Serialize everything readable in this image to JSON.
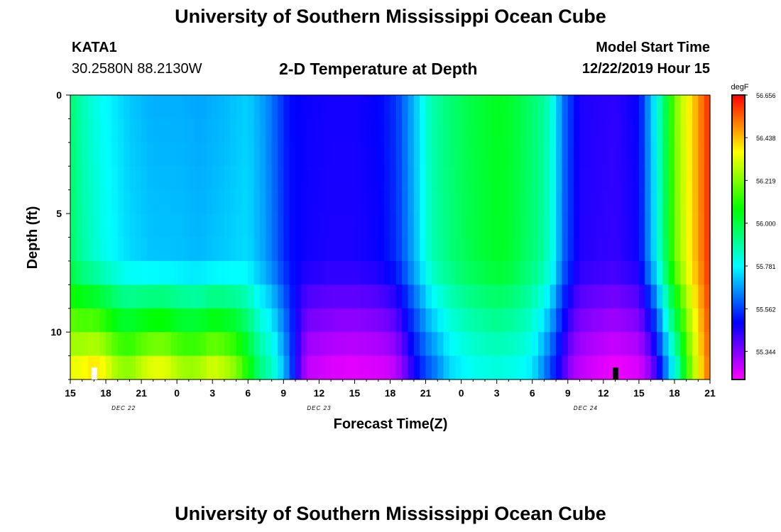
{
  "header": {
    "title_top": "University of Southern Mississippi Ocean Cube",
    "title_bottom": "University of Southern Mississippi Ocean Cube",
    "station_id": "KATA1",
    "coordinates": "30.2580N 88.2130W",
    "plot_title": "2-D Temperature at Depth",
    "model_start_label": "Model Start Time",
    "model_start_value": "12/22/2019 Hour 15"
  },
  "chart_data": {
    "type": "heatmap",
    "title": "2-D Temperature at Depth",
    "xlabel": "Forecast Time(Z)",
    "ylabel": "Depth (ft)",
    "x_range_hours": [
      0,
      54
    ],
    "x_ticks": [
      {
        "h": 0,
        "label": "15"
      },
      {
        "h": 3,
        "label": "18"
      },
      {
        "h": 6,
        "label": "21"
      },
      {
        "h": 9,
        "label": "0"
      },
      {
        "h": 12,
        "label": "3"
      },
      {
        "h": 15,
        "label": "6"
      },
      {
        "h": 18,
        "label": "9"
      },
      {
        "h": 21,
        "label": "12"
      },
      {
        "h": 24,
        "label": "15"
      },
      {
        "h": 27,
        "label": "18"
      },
      {
        "h": 30,
        "label": "21"
      },
      {
        "h": 33,
        "label": "0"
      },
      {
        "h": 36,
        "label": "3"
      },
      {
        "h": 39,
        "label": "6"
      },
      {
        "h": 42,
        "label": "9"
      },
      {
        "h": 45,
        "label": "12"
      },
      {
        "h": 48,
        "label": "15"
      },
      {
        "h": 51,
        "label": "18"
      },
      {
        "h": 54,
        "label": "21"
      }
    ],
    "date_labels": [
      {
        "h": 4.5,
        "label": "DEC 22"
      },
      {
        "h": 21,
        "label": "DEC 23"
      },
      {
        "h": 43.5,
        "label": "DEC 24"
      }
    ],
    "y_range_ft": [
      0,
      12
    ],
    "y_ticks": [
      {
        "ft": 0,
        "label": "0"
      },
      {
        "ft": 5,
        "label": "5"
      },
      {
        "ft": 10,
        "label": "10"
      }
    ],
    "layers_depth_ft": [
      0.5,
      1.5,
      2.5,
      3.5,
      4.5,
      5.5,
      6.5,
      7.5,
      8.5,
      9.5,
      10.5,
      11.5
    ],
    "colorbar": {
      "unit": "degF",
      "min": 55.2,
      "max": 56.656,
      "tick_labels": [
        "56.656",
        "56.438",
        "56.219",
        "56.000",
        "55.781",
        "55.562",
        "55.344"
      ],
      "tick_values": [
        56.656,
        56.438,
        56.219,
        56.0,
        55.781,
        55.562,
        55.344
      ]
    },
    "markers": [
      {
        "h": 2.0,
        "color": "#ffffff",
        "label": "tide-marker-white"
      },
      {
        "h": 46.0,
        "color": "#000000",
        "label": "tide-marker-black"
      }
    ],
    "surface_profile": {
      "h": [
        0,
        1,
        2,
        3,
        5,
        7,
        9,
        11,
        13,
        15,
        16.5,
        17.5,
        18.5,
        20,
        22,
        24,
        26,
        27.5,
        29,
        30.5,
        32,
        33.5,
        35,
        36,
        37,
        38,
        39,
        40,
        40.8,
        41.6,
        43,
        46,
        48,
        48.6,
        49.5,
        50.3,
        51,
        52,
        53,
        54
      ],
      "temp": [
        55.95,
        55.87,
        55.82,
        55.78,
        55.72,
        55.69,
        55.69,
        55.68,
        55.7,
        55.73,
        55.66,
        55.58,
        55.5,
        55.48,
        55.47,
        55.47,
        55.49,
        55.55,
        55.7,
        55.88,
        55.94,
        55.99,
        56.02,
        56.04,
        56.03,
        55.99,
        55.95,
        55.9,
        55.8,
        55.62,
        55.46,
        55.44,
        55.49,
        55.62,
        55.8,
        56.0,
        56.2,
        56.35,
        56.48,
        56.62
      ]
    },
    "bottom_profile": {
      "h": [
        0,
        1,
        2,
        3,
        4,
        5,
        6,
        7,
        8,
        9,
        10,
        11,
        12,
        13,
        14,
        15,
        16,
        17,
        18,
        18.5,
        19.5,
        20,
        22,
        24,
        26,
        27,
        28,
        29,
        30,
        31,
        32,
        34,
        36,
        38,
        39,
        40,
        41,
        41.6,
        42.4,
        44,
        46,
        48,
        49,
        49.8,
        50.5,
        51.3,
        52,
        53,
        54
      ],
      "temp": [
        56.38,
        56.4,
        56.45,
        56.4,
        56.3,
        56.28,
        56.35,
        56.4,
        56.4,
        56.33,
        56.3,
        56.32,
        56.38,
        56.34,
        56.27,
        56.12,
        55.95,
        55.88,
        55.72,
        55.62,
        55.35,
        55.25,
        55.22,
        55.21,
        55.22,
        55.23,
        55.3,
        55.45,
        55.55,
        55.62,
        55.72,
        55.78,
        55.8,
        55.78,
        55.74,
        55.62,
        55.48,
        55.4,
        55.28,
        55.23,
        55.2,
        55.22,
        55.3,
        55.48,
        55.66,
        55.84,
        56.1,
        56.35,
        56.55
      ]
    },
    "lower_layer_cutoff_ft": 7.0
  }
}
